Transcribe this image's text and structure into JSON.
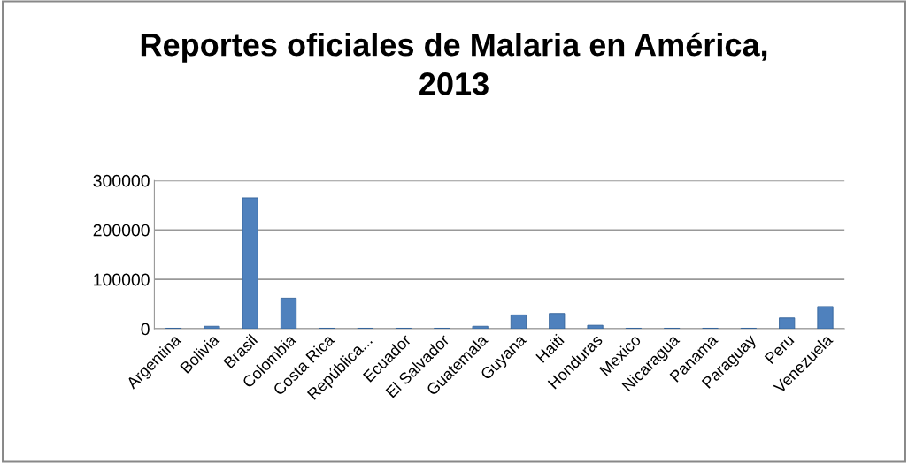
{
  "chart_data": {
    "type": "bar",
    "title": "Reportes oficiales de Malaria en América,\n2013",
    "categories": [
      "Argentina",
      "Bolivia",
      "Brasil",
      "Colombia",
      "Costa Rica",
      "República...",
      "Ecuador",
      "El Salvador",
      "Guatemala",
      "Guyana",
      "Haiti",
      "Honduras",
      "Mexico",
      "Nicaragua",
      "Panama",
      "Paraguay",
      "Peru",
      "Venezuela"
    ],
    "values": [
      1000,
      5000,
      265000,
      62000,
      1000,
      1000,
      1000,
      1000,
      5000,
      28000,
      31000,
      7000,
      1000,
      1000,
      1000,
      1000,
      22000,
      45000
    ],
    "color": "#4f81bd",
    "ylim": [
      0,
      300000
    ],
    "yticks": [
      0,
      100000,
      200000,
      300000
    ],
    "grid": "y"
  }
}
